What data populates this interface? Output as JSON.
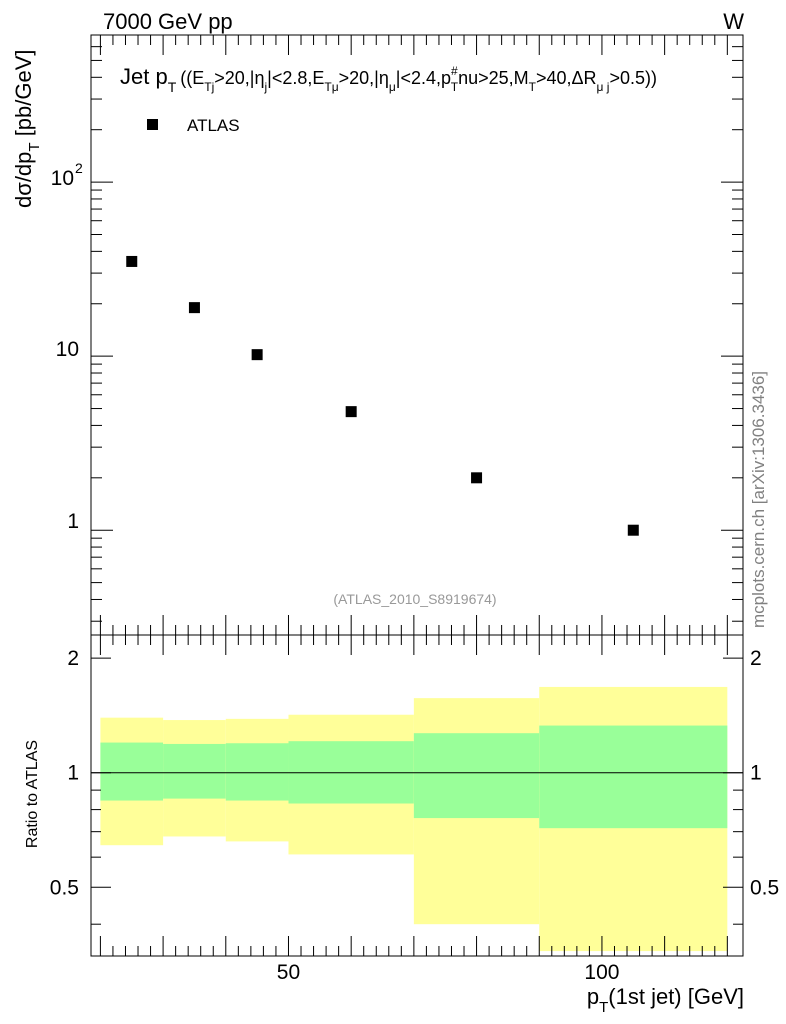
{
  "header": {
    "left": "7000 GeV pp",
    "right": "W"
  },
  "watermark": "mcplots.cern.ch [arXiv:1306.3436]",
  "analysis_id": "(ATLAS_2010_S8919674)",
  "colors": {
    "marker": "#000000",
    "band_inner": "#99ff99",
    "band_outer": "#ffff99",
    "grey_text": "#999999"
  },
  "chart_data": [
    {
      "type": "scatter",
      "title_parts": {
        "main": "Jet p",
        "main_sub": "T",
        "s1": "((E",
        "s1_sub": "Tj",
        "s2": ">20,|η",
        "s2_sub": "j",
        "s3": "|<2.8,E",
        "s3_sub": "Tμ",
        "s4": ">20,|η",
        "s4_sub": "μ",
        "s5": "|<2.4,p",
        "s5_sup": "#",
        "s5_sub": "T",
        "s6": "nu>25,M",
        "s6_sub": "T",
        "s7": ">40,ΔR",
        "s7_sub": "μ j",
        "s8": ">0.5))"
      },
      "ylabel_parts": {
        "main": "dσ/dp",
        "sub": "T",
        "rest": " [pb/GeV]"
      },
      "yscale": "log",
      "ylim": [
        0.25,
        700
      ],
      "xlim": [
        18.5,
        122.5
      ],
      "legend_placement": "top-left",
      "series": [
        {
          "name": "ATLAS",
          "x": [
            25,
            35,
            45,
            60,
            80,
            105
          ],
          "y": [
            35,
            19,
            10.2,
            4.8,
            2.0,
            1.0
          ]
        }
      ],
      "ytick_labels": {
        "t1": "1",
        "t10": "10",
        "t100_base": "10",
        "t100_exp": "2"
      }
    },
    {
      "type": "area",
      "ylabel": "Ratio to ATLAS",
      "xlabel_parts": {
        "main": "p",
        "sub": "T",
        "rest": "(1st jet) [GeV]"
      },
      "xlim": [
        18.5,
        122.5
      ],
      "ylim": [
        0.33,
        2.3
      ],
      "reference_line": 1.0,
      "bins": [
        {
          "lo": 20,
          "hi": 30,
          "inner_lo": 0.845,
          "inner_hi": 1.2,
          "outer_lo": 0.645,
          "outer_hi": 1.395
        },
        {
          "lo": 30,
          "hi": 40,
          "inner_lo": 0.855,
          "inner_hi": 1.19,
          "outer_lo": 0.68,
          "outer_hi": 1.375
        },
        {
          "lo": 40,
          "hi": 50,
          "inner_lo": 0.845,
          "inner_hi": 1.195,
          "outer_lo": 0.66,
          "outer_hi": 1.385
        },
        {
          "lo": 50,
          "hi": 70,
          "inner_lo": 0.83,
          "inner_hi": 1.21,
          "outer_lo": 0.61,
          "outer_hi": 1.42
        },
        {
          "lo": 70,
          "hi": 90,
          "inner_lo": 0.76,
          "inner_hi": 1.27,
          "outer_lo": 0.4,
          "outer_hi": 1.57
        },
        {
          "lo": 90,
          "hi": 120,
          "inner_lo": 0.715,
          "inner_hi": 1.33,
          "outer_lo": 0.34,
          "outer_hi": 1.68
        }
      ],
      "ytick_labels": [
        "0.5",
        "1",
        "2"
      ],
      "xtick_labels": [
        "50",
        "100"
      ]
    }
  ]
}
